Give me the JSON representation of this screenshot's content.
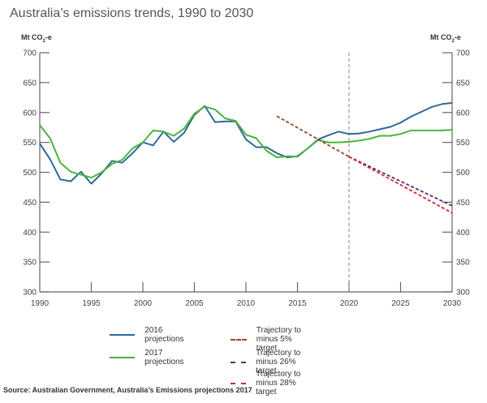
{
  "chart_data": {
    "type": "line",
    "title": "Australia’s emissions trends, 1990 to 2030",
    "ylabel_left": "Mt CO2-e",
    "ylabel_right": "Mt CO2-e",
    "ylabel_prefix": "Mt CO",
    "ylabel_sub": "2",
    "ylabel_suffix": "-e",
    "xlabel": "",
    "xlim": [
      1990,
      2030
    ],
    "ylim": [
      300,
      700
    ],
    "xticks": [
      "1990",
      "1995",
      "2000",
      "2005",
      "2010",
      "2015",
      "2020",
      "2025",
      "2030"
    ],
    "yticks": [
      "300",
      "350",
      "400",
      "450",
      "500",
      "550",
      "600",
      "650",
      "700"
    ],
    "vertical_reference_line": {
      "x": 2020,
      "style": "dashed",
      "color": "#999999"
    },
    "grid": false,
    "x": [
      1990,
      1991,
      1992,
      1993,
      1994,
      1995,
      1996,
      1997,
      1998,
      1999,
      2000,
      2001,
      2002,
      2003,
      2004,
      2005,
      2006,
      2007,
      2008,
      2009,
      2010,
      2011,
      2012,
      2013,
      2014,
      2015,
      2016,
      2017,
      2018,
      2019,
      2020,
      2021,
      2022,
      2023,
      2024,
      2025,
      2026,
      2027,
      2028,
      2029,
      2030
    ],
    "series": [
      {
        "name": "2016 projections",
        "color": "#2e6a9a",
        "style": "solid",
        "x": [
          1990,
          1991,
          1992,
          1993,
          1994,
          1995,
          1996,
          1997,
          1998,
          1999,
          2000,
          2001,
          2002,
          2003,
          2004,
          2005,
          2006,
          2007,
          2008,
          2009,
          2010,
          2011,
          2012,
          2013,
          2014,
          2015,
          2016,
          2017,
          2018,
          2019,
          2020,
          2021,
          2022,
          2023,
          2024,
          2025,
          2026,
          2027,
          2028,
          2029,
          2030
        ],
        "values": [
          548,
          522,
          488,
          485,
          501,
          481,
          498,
          519,
          516,
          532,
          550,
          545,
          568,
          551,
          566,
          596,
          611,
          584,
          585,
          585,
          555,
          542,
          542,
          532,
          525,
          527,
          540,
          555,
          562,
          568,
          564,
          565,
          568,
          572,
          576,
          583,
          593,
          601,
          609,
          614,
          616
        ]
      },
      {
        "name": "2017 projections",
        "color": "#4db33d",
        "style": "solid",
        "x": [
          1990,
          1991,
          1992,
          1993,
          1994,
          1995,
          1996,
          1997,
          1998,
          1999,
          2000,
          2001,
          2002,
          2003,
          2004,
          2005,
          2006,
          2007,
          2008,
          2009,
          2010,
          2011,
          2012,
          2013,
          2014,
          2015,
          2016,
          2017,
          2018,
          2019,
          2020,
          2021,
          2022,
          2023,
          2024,
          2025,
          2026,
          2027,
          2028,
          2029,
          2030
        ],
        "values": [
          579,
          557,
          516,
          501,
          496,
          491,
          500,
          514,
          521,
          540,
          550,
          570,
          568,
          561,
          573,
          598,
          610,
          605,
          590,
          586,
          563,
          557,
          536,
          525,
          527,
          526,
          540,
          554,
          550,
          550,
          551,
          553,
          556,
          561,
          561,
          564,
          570,
          570,
          570,
          570,
          571
        ]
      },
      {
        "name": "Trajectory to minus 5% target",
        "color": "#8b4a2b",
        "style": "dashed",
        "x": [
          2013,
          2020
        ],
        "values": [
          594,
          526
        ]
      },
      {
        "name": "Trajectory to minus 26% target",
        "color": "#5a2a7a",
        "style": "dashed",
        "x": [
          2020,
          2030
        ],
        "values": [
          526,
          444
        ]
      },
      {
        "name": "Trajectory to minus 28% target",
        "color": "#d8232a",
        "style": "dashed",
        "x": [
          2020,
          2030
        ],
        "values": [
          526,
          432
        ]
      }
    ],
    "legend": {
      "placement": "bottom",
      "entries": [
        {
          "label": "2016 projections",
          "color": "#2e6a9a",
          "style": "solid"
        },
        {
          "label": "2017 projections",
          "color": "#4db33d",
          "style": "solid"
        },
        {
          "label": "Trajectory to minus 5% target",
          "color": "#8b4a2b",
          "style": "dashed"
        },
        {
          "label": "Trajectory to minus 26% target",
          "color": "#5a2a7a",
          "style": "dashed"
        },
        {
          "label": "Trajectory to minus 28% target",
          "color": "#d8232a",
          "style": "dashed"
        }
      ]
    },
    "source": "Source: Australian Government, Australia’s Emissions projections 2017"
  }
}
